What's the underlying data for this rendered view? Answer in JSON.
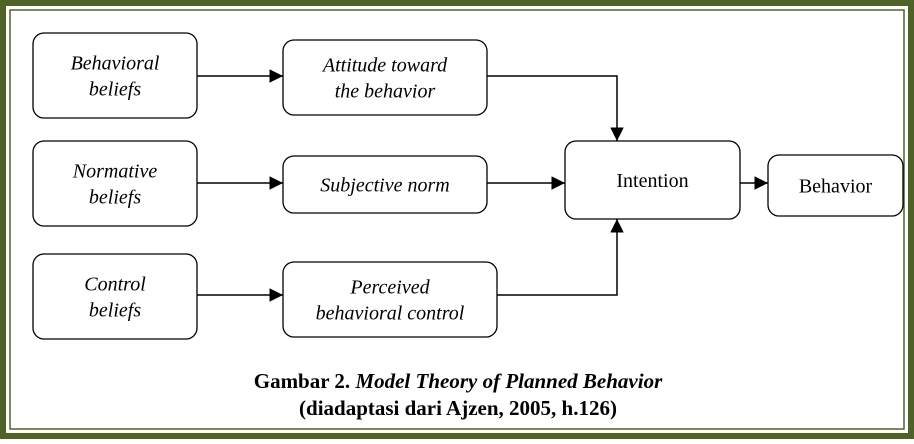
{
  "nodes": [
    {
      "lines": [
        "Behavioral",
        "beliefs"
      ]
    },
    {
      "lines": [
        "Normative",
        "beliefs"
      ]
    },
    {
      "lines": [
        "Control",
        "beliefs"
      ]
    },
    {
      "lines": [
        "Attitude toward",
        "the behavior"
      ]
    },
    {
      "lines": [
        "Subjective norm"
      ]
    },
    {
      "lines": [
        "Perceived",
        "behavioral control"
      ]
    },
    {
      "lines": [
        "Intention"
      ]
    },
    {
      "lines": [
        "Behavior"
      ]
    }
  ],
  "caption": {
    "line1": {
      "label": "Gambar 2.",
      "title": "Model Theory of Planned Behavior"
    },
    "line2": "(diadaptasi dari Ajzen, 2005, h.126)"
  }
}
